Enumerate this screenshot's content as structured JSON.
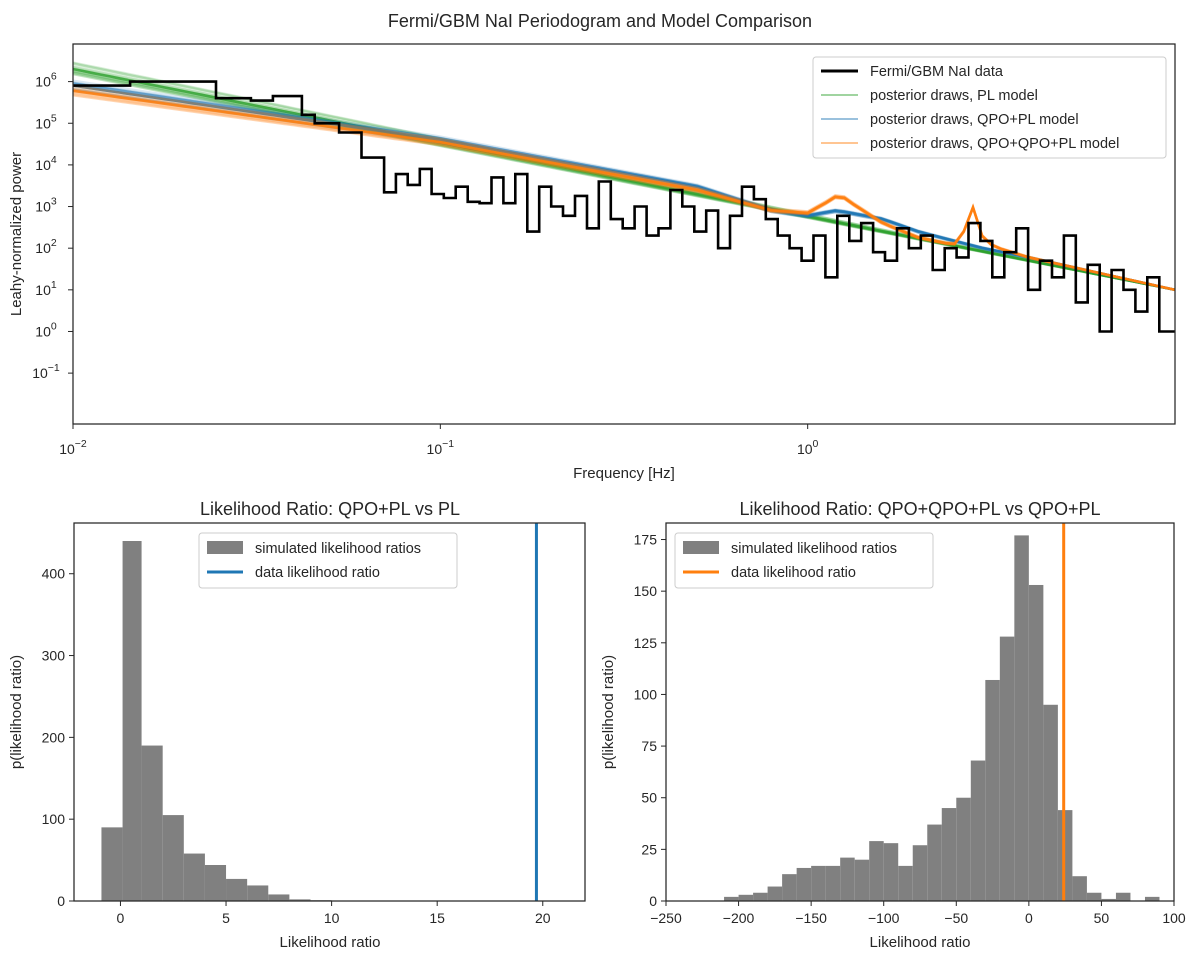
{
  "figure_title": "Fermi/GBM NaI Periodogram and Model Comparison",
  "colors": {
    "data": "#000000",
    "pl": "#2ca02c",
    "qpo_pl": "#1f77b4",
    "qpo_qpo_pl": "#ff7f0e",
    "hist": "#808080",
    "axes": "#262626"
  },
  "chart_data": [
    {
      "type": "line",
      "title": "",
      "xlabel": "Frequency [Hz]",
      "ylabel": "Leahy-normalized power",
      "xscale": "log",
      "yscale": "log",
      "xlim": [
        0.01,
        10
      ],
      "ylim": [
        0.006,
        8000000
      ],
      "xtick_labels": [
        "10^-2",
        "10^-1",
        "10^0"
      ],
      "ytick_labels": [
        "10^-1",
        "10^0",
        "10^1",
        "10^2",
        "10^3",
        "10^4",
        "10^5",
        "10^6"
      ],
      "legend_position": "top-right",
      "legend": [
        {
          "label": "Fermi/GBM NaI data",
          "color": "#000000"
        },
        {
          "label": "posterior draws, PL model",
          "color": "#2ca02c"
        },
        {
          "label": "posterior draws, QPO+PL model",
          "color": "#1f77b4"
        },
        {
          "label": "posterior draws, QPO+QPO+PL model",
          "color": "#ff7f0e"
        }
      ],
      "data_series": {
        "name": "Fermi/GBM NaI data",
        "style": "steps",
        "x": [
          0.01,
          0.0143,
          0.0245,
          0.0305,
          0.035,
          0.042,
          0.0455,
          0.053,
          0.061,
          0.0703,
          0.0757,
          0.0815,
          0.0879,
          0.0947,
          0.1022,
          0.1101,
          0.1187,
          0.1279,
          0.1378,
          0.1485,
          0.16,
          0.1725,
          0.1858,
          0.2003,
          0.2158,
          0.2326,
          0.2507,
          0.2701,
          0.2911,
          0.3137,
          0.338,
          0.3643,
          0.3925,
          0.423,
          0.4558,
          0.4912,
          0.5293,
          0.5704,
          0.6147,
          0.6624,
          0.7138,
          0.7692,
          0.8289,
          0.8932,
          0.9625,
          1.0373,
          1.1178,
          1.2045,
          1.298,
          1.3987,
          1.5073,
          1.6242,
          1.7503,
          1.8861,
          2.0324,
          2.1901,
          2.3601,
          2.5432,
          2.7406,
          2.9532,
          3.1824,
          3.4294,
          3.6955,
          3.9823,
          4.2913,
          4.6243,
          4.9832,
          5.3698,
          5.7866,
          6.2356,
          6.7195,
          7.241,
          7.8029,
          8.4084,
          9.061,
          10
        ],
        "y": [
          800000,
          1000000,
          400000,
          350000,
          450000,
          160000,
          100000,
          60000,
          15000,
          2200,
          6000,
          3300,
          8000,
          2000,
          1600,
          3000,
          1300,
          1200,
          5000,
          1200,
          6000,
          250,
          3000,
          1000,
          600,
          1800,
          300,
          4000,
          500,
          300,
          1000,
          200,
          300,
          2500,
          1000,
          250,
          800,
          100,
          600,
          3000,
          1500,
          500,
          200,
          100,
          50,
          200,
          20,
          600,
          150,
          400,
          80,
          50,
          300,
          100,
          200,
          30,
          100,
          60,
          400,
          150,
          20,
          80,
          300,
          10,
          50,
          20,
          200,
          5,
          40,
          1,
          30,
          10,
          3,
          20,
          1,
          40
        ]
      },
      "model_series": [
        {
          "name": "posterior draws, PL model",
          "x": [
            0.01,
            10
          ],
          "y": [
            2000000,
            10
          ]
        },
        {
          "name": "posterior draws, QPO+PL model",
          "x": [
            0.01,
            0.1,
            0.5,
            0.8,
            1.0,
            1.2,
            1.6,
            2.0,
            2.5,
            3.0,
            4.0,
            10
          ],
          "y": [
            800000,
            40000,
            3000,
            800,
            600,
            800,
            500,
            250,
            150,
            100,
            60,
            10
          ]
        },
        {
          "name": "posterior draws, QPO+QPO+PL model",
          "x": [
            0.01,
            0.1,
            0.5,
            0.8,
            1.0,
            1.15,
            1.22,
            1.3,
            1.6,
            2.0,
            2.5,
            2.7,
            2.8,
            2.9,
            3.2,
            4.0,
            10
          ],
          "y": [
            600000,
            35000,
            2500,
            800,
            700,
            1400,
            2000,
            1300,
            400,
            180,
            120,
            300,
            1300,
            250,
            110,
            60,
            10
          ]
        }
      ]
    },
    {
      "type": "bar",
      "title": "Likelihood Ratio: QPO+PL vs PL",
      "xlabel": "Likelihood ratio",
      "ylabel": "p(likelihood ratio)",
      "xlim": [
        -2.2,
        22
      ],
      "ylim": [
        0,
        462
      ],
      "xticks": [
        0,
        5,
        10,
        15,
        20
      ],
      "yticks": [
        0,
        100,
        200,
        300,
        400
      ],
      "legend_position": "top-center",
      "bin_edges": [
        -0.9,
        0.1,
        1.0,
        2.0,
        3.0,
        4.0,
        5.0,
        6.0,
        7.0,
        8.0,
        9.0,
        10.0
      ],
      "values": [
        90,
        440,
        190,
        105,
        58,
        44,
        27,
        19,
        8,
        2,
        1
      ],
      "data_line": {
        "label": "data likelihood ratio",
        "value": 19.7,
        "color": "#1f77b4"
      },
      "hist_label": "simulated likelihood ratios"
    },
    {
      "type": "bar",
      "title": "Likelihood Ratio: QPO+QPO+PL vs QPO+PL",
      "xlabel": "Likelihood ratio",
      "ylabel": "p(likelihood ratio)",
      "xlim": [
        -250,
        100
      ],
      "ylim": [
        0,
        183
      ],
      "xticks": [
        -250,
        -200,
        -150,
        -100,
        -50,
        0,
        50,
        100
      ],
      "yticks": [
        0,
        25,
        50,
        75,
        100,
        125,
        150,
        175
      ],
      "legend_position": "top-left",
      "bin_edges": [
        -210,
        -200,
        -190,
        -180,
        -170,
        -160,
        -150,
        -140,
        -130,
        -120,
        -110,
        -100,
        -90,
        -80,
        -70,
        -60,
        -50,
        -40,
        -30,
        -20,
        -10,
        0,
        10,
        20,
        30,
        40,
        50,
        60,
        70,
        80,
        90
      ],
      "values": [
        2,
        3,
        4,
        7,
        13,
        16,
        17,
        17,
        21,
        20,
        29,
        28,
        17,
        27,
        37,
        45,
        50,
        68,
        107,
        128,
        177,
        153,
        95,
        44,
        12,
        4,
        1,
        4,
        0,
        2
      ],
      "data_line": {
        "label": "data likelihood ratio",
        "value": 24,
        "color": "#ff7f0e"
      },
      "hist_label": "simulated likelihood ratios"
    }
  ]
}
